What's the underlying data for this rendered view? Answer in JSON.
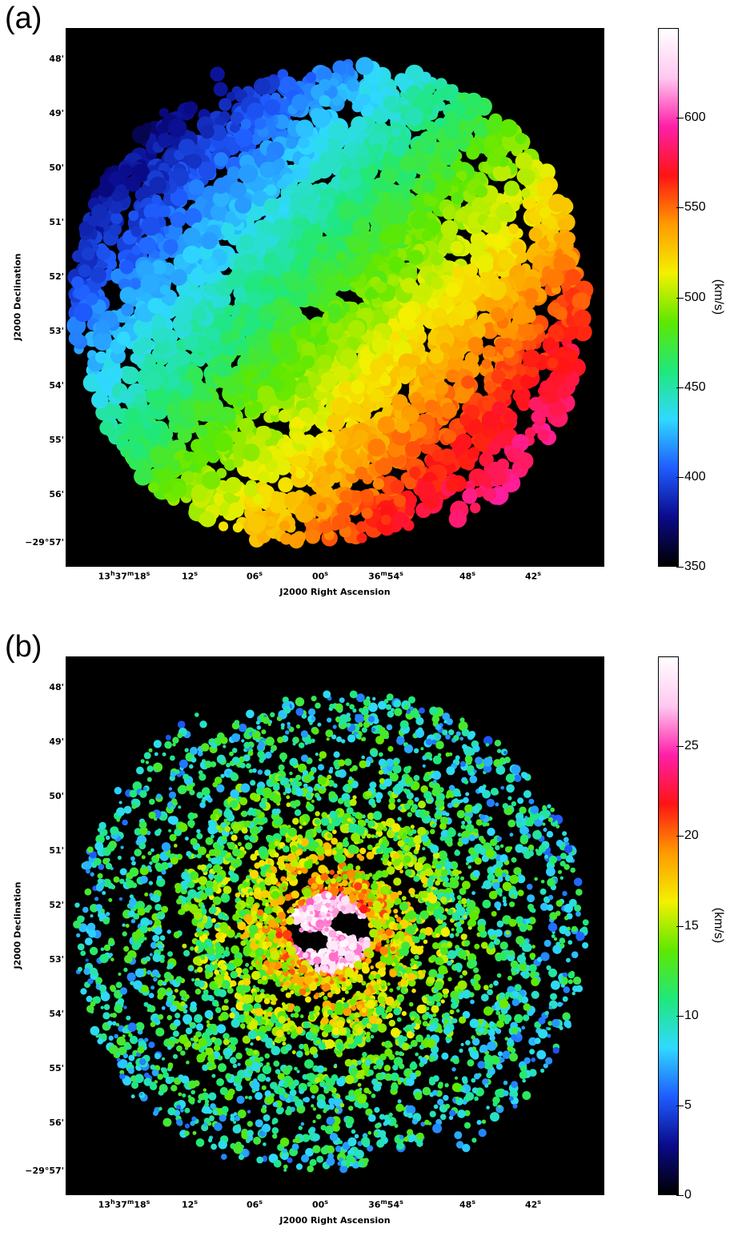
{
  "panels": [
    {
      "label": "(a)",
      "xlabel": "J2000 Right Ascension",
      "ylabel": "J2000 Declination",
      "dec_ticks": [
        "48'",
        "49'",
        "50'",
        "51'",
        "52'",
        "53'",
        "54'",
        "55'",
        "56'",
        "−29°57'"
      ],
      "ra_ticks": [
        {
          "h": "13",
          "m": "37",
          "s": "18",
          "label": "13h37m18s"
        },
        {
          "s": "12",
          "label": "12s"
        },
        {
          "s": "06",
          "label": "06s"
        },
        {
          "s": "00",
          "label": "00s"
        },
        {
          "m": "36",
          "s": "54",
          "label": "36m54s"
        },
        {
          "s": "48",
          "label": "48s"
        },
        {
          "s": "42",
          "label": "42s"
        }
      ],
      "colorbar": {
        "unit": "(km/s)",
        "min": 350,
        "max": 650,
        "ticks": [
          "350",
          "400",
          "450",
          "500",
          "550",
          "600"
        ],
        "tick_values": [
          350,
          400,
          450,
          500,
          550,
          600
        ]
      }
    },
    {
      "label": "(b)",
      "xlabel": "J2000 Right Ascension",
      "ylabel": "J2000 Declination",
      "dec_ticks": [
        "48'",
        "49'",
        "50'",
        "51'",
        "52'",
        "53'",
        "54'",
        "55'",
        "56'",
        "−29°57'"
      ],
      "ra_ticks": [
        {
          "h": "13",
          "m": "37",
          "s": "18",
          "label": "13h37m18s"
        },
        {
          "s": "12",
          "label": "12s"
        },
        {
          "s": "06",
          "label": "06s"
        },
        {
          "s": "00",
          "label": "00s"
        },
        {
          "m": "36",
          "s": "54",
          "label": "36m54s"
        },
        {
          "s": "48",
          "label": "48s"
        },
        {
          "s": "42",
          "label": "42s"
        }
      ],
      "colorbar": {
        "unit": "(km/s)",
        "min": 0,
        "max": 30,
        "ticks": [
          "0",
          "5",
          "10",
          "15",
          "20",
          "25"
        ],
        "tick_values": [
          0,
          5,
          10,
          15,
          20,
          25
        ]
      }
    }
  ],
  "colormap": [
    "#000000",
    "#0a0a8a",
    "#1f5cff",
    "#2fd9ff",
    "#1fe87a",
    "#5fe800",
    "#f4f000",
    "#ff9a00",
    "#ff1414",
    "#ff1fa8",
    "#ffc8f0",
    "#ffffff"
  ]
}
